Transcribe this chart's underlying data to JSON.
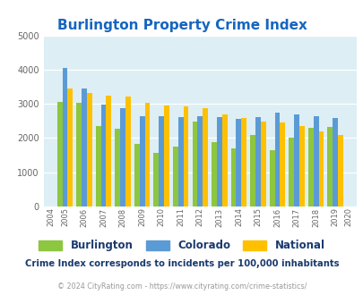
{
  "title": "Burlington Property Crime Index",
  "plot_years": [
    2005,
    2006,
    2007,
    2008,
    2009,
    2010,
    2011,
    2012,
    2013,
    2014,
    2015,
    2016,
    2017,
    2018,
    2019
  ],
  "burlington": [
    3050,
    3025,
    2350,
    2280,
    1840,
    1560,
    1760,
    2490,
    1870,
    1690,
    2100,
    1650,
    2020,
    2310,
    2330
  ],
  "colorado": [
    4050,
    3440,
    2990,
    2870,
    2650,
    2650,
    2610,
    2650,
    2620,
    2560,
    2620,
    2740,
    2680,
    2650,
    2590
  ],
  "national": [
    3440,
    3330,
    3230,
    3210,
    3030,
    2940,
    2920,
    2870,
    2680,
    2590,
    2490,
    2450,
    2360,
    2190,
    2100
  ],
  "bar_color_burlington": "#8dc63f",
  "bar_color_colorado": "#5b9bd5",
  "bar_color_national": "#ffc000",
  "ylim": [
    0,
    5000
  ],
  "yticks": [
    0,
    1000,
    2000,
    3000,
    4000,
    5000
  ],
  "plot_bg": "#ddeef5",
  "title_color": "#1565c0",
  "legend_color": "#1a3a6e",
  "subtitle": "Crime Index corresponds to incidents per 100,000 inhabitants",
  "footer": "© 2024 CityRating.com - https://www.cityrating.com/crime-statistics/",
  "subtitle_color": "#1a3a6e",
  "footer_color": "#999999",
  "bar_width": 0.27
}
